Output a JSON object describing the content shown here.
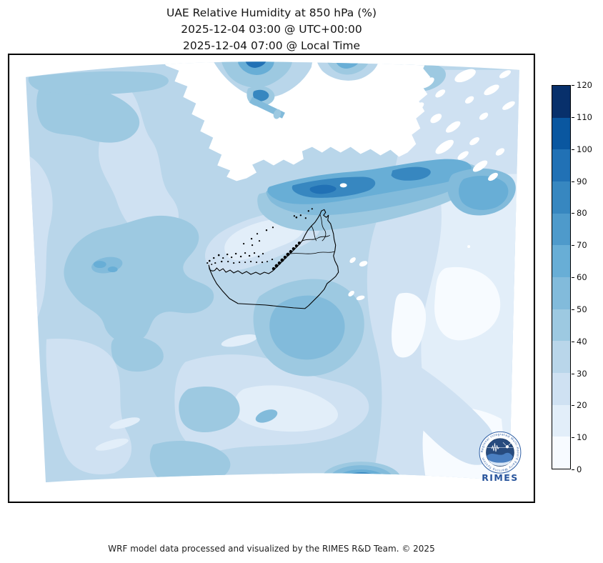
{
  "title": {
    "line1": "UAE Relative Humidity at 850 hPa (%)",
    "line2": "2025-12-04 03:00 @ UTC+00:00",
    "line3": "2025-12-04 07:00 @ Local Time"
  },
  "footer": {
    "credit": "WRF model data processed and visualized by the RIMES R&D Team. © 2025"
  },
  "logo": {
    "label": "RIMES",
    "ring_text": "Regional Integrated Multi-Hazard Early Warning System",
    "ring_color": "#2f5fa5",
    "label_color": "#27539b"
  },
  "colorbar": {
    "min": 0,
    "max": 120,
    "tick_step": 10,
    "ticks": [
      0,
      10,
      20,
      30,
      40,
      50,
      60,
      70,
      80,
      90,
      100,
      110,
      120
    ],
    "levels": [
      {
        "min": 0,
        "max": 10,
        "color": "#f7fbff"
      },
      {
        "min": 10,
        "max": 20,
        "color": "#e2eef9"
      },
      {
        "min": 20,
        "max": 30,
        "color": "#cfe1f2"
      },
      {
        "min": 30,
        "max": 40,
        "color": "#b9d6ea"
      },
      {
        "min": 40,
        "max": 50,
        "color": "#9dc9e1"
      },
      {
        "min": 50,
        "max": 60,
        "color": "#82bbdb"
      },
      {
        "min": 60,
        "max": 70,
        "color": "#68aed6"
      },
      {
        "min": 70,
        "max": 80,
        "color": "#4e9acb"
      },
      {
        "min": 80,
        "max": 90,
        "color": "#3787c0"
      },
      {
        "min": 90,
        "max": 100,
        "color": "#2171b5"
      },
      {
        "min": 100,
        "max": 110,
        "color": "#0a57a0"
      },
      {
        "min": 110,
        "max": 120,
        "color": "#08306b"
      }
    ]
  },
  "map": {
    "variable": "Relative Humidity",
    "units": "%",
    "outline": "United Arab Emirates",
    "outside_domain_color": "#ffffff"
  }
}
